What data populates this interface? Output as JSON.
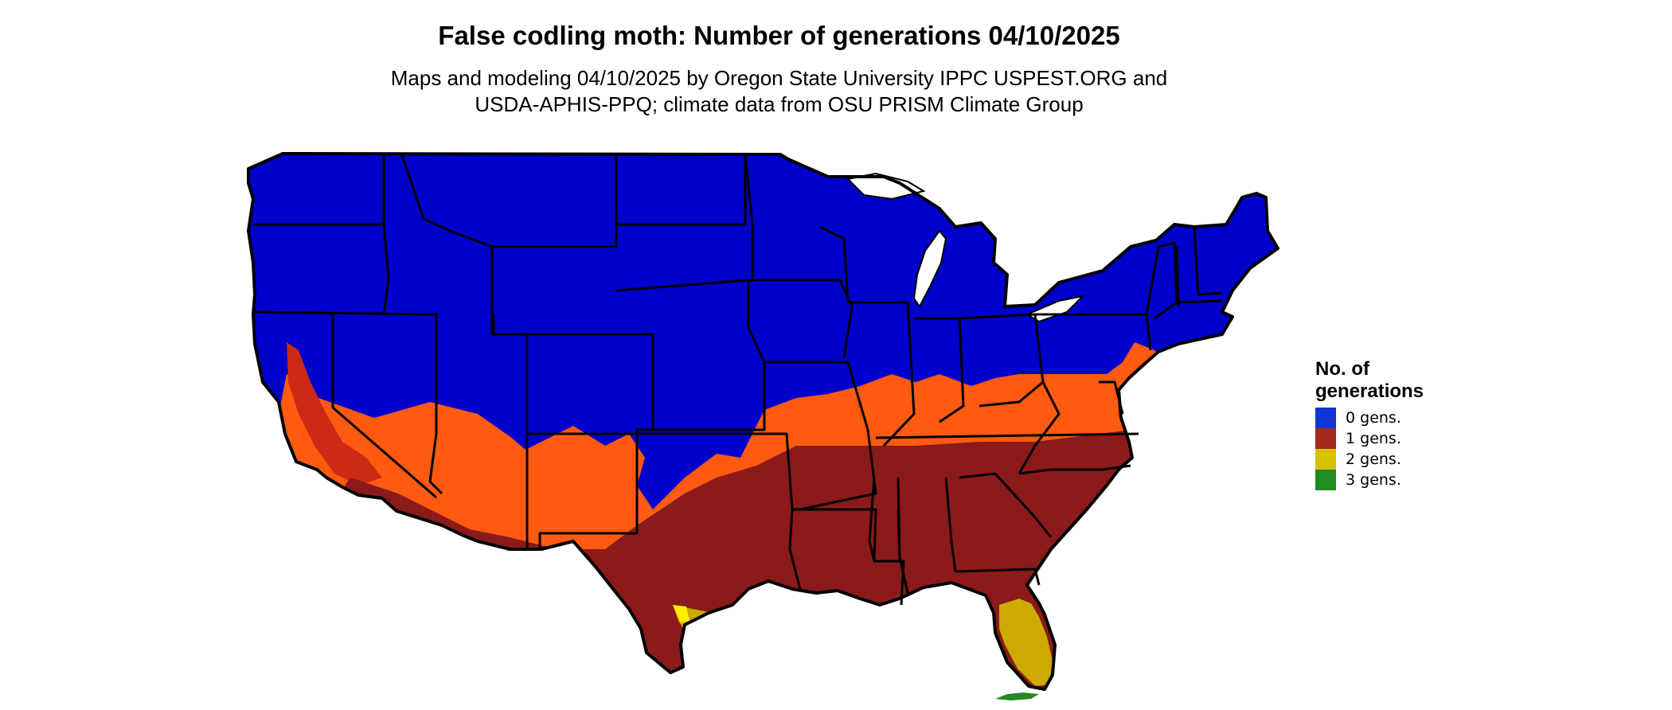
{
  "title": "False codling moth: Number of generations 04/10/2025",
  "subtitle": {
    "line1": "Maps and modeling 04/10/2025 by Oregon State University IPPC USPEST.ORG and",
    "line2": "USDA-APHIS-PPQ; climate data from OSU PRISM Climate Group"
  },
  "legend": {
    "title_line1": "No. of",
    "title_line2": "generations",
    "items": [
      {
        "label": "0 gens.",
        "color": "#1035d0"
      },
      {
        "label": "1 gens.",
        "color": "#a8281a"
      },
      {
        "label": "2 gens.",
        "color": "#d7c000"
      },
      {
        "label": "3 gens.",
        "color": "#228b22"
      }
    ]
  },
  "map": {
    "colors": {
      "zero_gens": "#0000cc",
      "one_gen_light": "#ff5a10",
      "one_gen": "#8b1a1a",
      "two_gens": "#ccaa00",
      "two_gens_bright": "#ffee00",
      "three_gens": "#228b22",
      "boundary": "#000000"
    }
  }
}
